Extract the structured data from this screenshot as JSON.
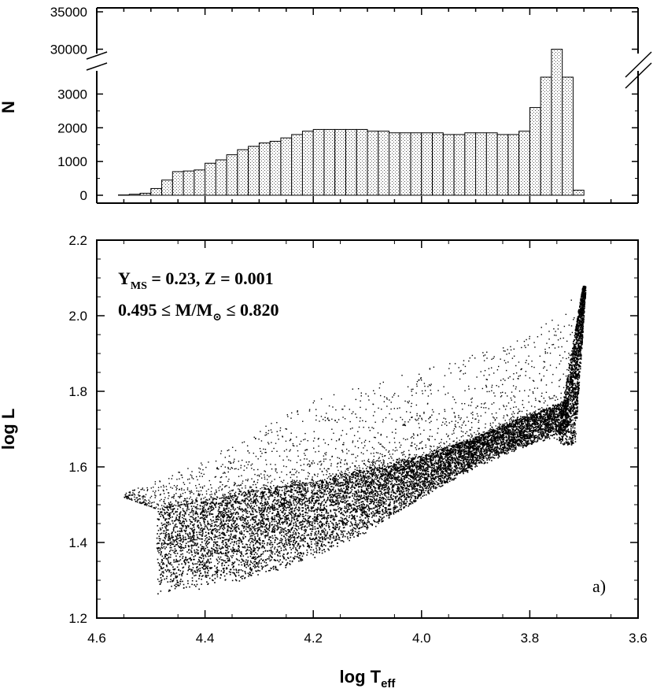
{
  "chart_data": [
    {
      "type": "bar",
      "panel": "histogram",
      "ylabel": "N",
      "xlim": [
        4.6,
        3.6
      ],
      "y_axis_break": {
        "lower_range": [
          0,
          3500
        ],
        "upper_range": [
          25000,
          35000
        ]
      },
      "yticks_lower": [
        "0",
        "1000",
        "2000",
        "3000"
      ],
      "yticks_upper": [
        "30000",
        "35000"
      ],
      "bin_width": 0.02,
      "bin_left_edges": [
        4.56,
        4.54,
        4.52,
        4.5,
        4.48,
        4.46,
        4.44,
        4.42,
        4.4,
        4.38,
        4.36,
        4.34,
        4.32,
        4.3,
        4.28,
        4.26,
        4.24,
        4.22,
        4.2,
        4.18,
        4.16,
        4.14,
        4.12,
        4.1,
        4.08,
        4.06,
        4.04,
        4.02,
        4.0,
        3.98,
        3.96,
        3.94,
        3.92,
        3.9,
        3.88,
        3.86,
        3.84,
        3.82,
        3.8,
        3.78,
        3.76,
        3.74,
        3.72
      ],
      "values": [
        10,
        30,
        60,
        200,
        450,
        700,
        720,
        750,
        950,
        1050,
        1200,
        1350,
        1450,
        1550,
        1600,
        1700,
        1800,
        1900,
        1950,
        1950,
        1950,
        1950,
        1950,
        1900,
        1900,
        1850,
        1850,
        1850,
        1850,
        1850,
        1800,
        1800,
        1850,
        1850,
        1850,
        1800,
        1800,
        1900,
        2600,
        3500,
        30000,
        3500,
        150
      ],
      "fill": "stippled grey"
    },
    {
      "type": "scatter",
      "panel": "HR diagram",
      "xlabel": "log T",
      "xlabel_sub": "eff",
      "ylabel": "log L",
      "xlim": [
        4.6,
        3.6
      ],
      "ylim": [
        1.2,
        2.2
      ],
      "xticks": [
        "4.6",
        "4.4",
        "4.2",
        "4.0",
        "3.8",
        "3.6"
      ],
      "yticks": [
        "1.2",
        "1.4",
        "1.6",
        "1.8",
        "2.0",
        "2.2"
      ],
      "annotation_line1": {
        "main1": "Y",
        "sub1": "MS",
        "rest": " = 0.23,  Z = 0.001"
      },
      "annotation_line2": {
        "left": "0.495 ≤ M/M",
        "sun": "⊙",
        "right": " ≤ 0.820"
      },
      "panel_label": "a)",
      "point_color": "#000000",
      "lower_envelope": [
        [
          4.49,
          1.26
        ],
        [
          4.4,
          1.28
        ],
        [
          4.3,
          1.31
        ],
        [
          4.2,
          1.36
        ],
        [
          4.1,
          1.43
        ],
        [
          4.0,
          1.52
        ],
        [
          3.9,
          1.6
        ],
        [
          3.8,
          1.66
        ],
        [
          3.75,
          1.68
        ],
        [
          3.73,
          1.7
        ]
      ],
      "upper_envelope": [
        [
          4.55,
          1.52
        ],
        [
          4.49,
          1.49
        ],
        [
          4.4,
          1.51
        ],
        [
          4.3,
          1.54
        ],
        [
          4.2,
          1.56
        ],
        [
          4.1,
          1.6
        ],
        [
          4.0,
          1.63
        ],
        [
          3.9,
          1.68
        ],
        [
          3.82,
          1.73
        ],
        [
          3.76,
          1.76
        ],
        [
          3.73,
          1.78
        ]
      ],
      "scattered_upper_boundary": [
        [
          4.55,
          1.53
        ],
        [
          4.4,
          1.62
        ],
        [
          4.3,
          1.7
        ],
        [
          4.2,
          1.78
        ],
        [
          4.1,
          1.82
        ],
        [
          4.0,
          1.86
        ],
        [
          3.9,
          1.9
        ],
        [
          3.8,
          1.95
        ],
        [
          3.76,
          2.0
        ],
        [
          3.72,
          2.05
        ],
        [
          3.7,
          2.09
        ]
      ]
    }
  ]
}
